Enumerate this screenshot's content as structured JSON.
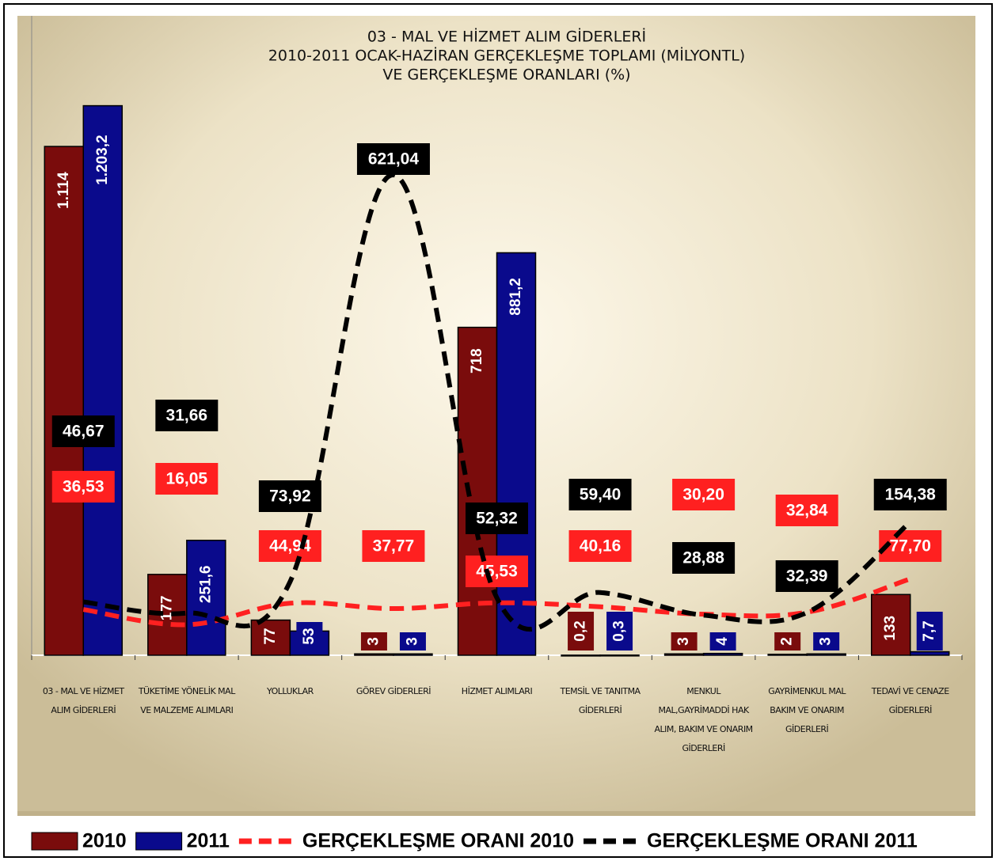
{
  "chart_data": {
    "type": "bar",
    "title": [
      "03 - MAL VE HİZMET ALIM GİDERLERİ",
      "2010-2011 OCAK-HAZİRAN GERÇEKLEŞME TOPLAMI (MİLYONTL)",
      "VE GERÇEKLEŞME ORANLARI (%)"
    ],
    "categories": [
      "03 - MAL VE HİZMET ALIM GİDERLERİ",
      "TÜKETİME YÖNELİK MAL VE MALZEME ALIMLARI",
      "YOLLUKLAR",
      "GÖREV GİDERLERİ",
      "HİZMET ALIMLARI",
      "TEMSİL VE TANITMA GİDERLERİ",
      "MENKUL MAL,GAYRİMADDİ HAK ALIM, BAKIM VE ONARIM GİDERLERİ",
      "GAYRİMENKUL MAL BAKIM VE ONARIM GİDERLERİ",
      "TEDAVİ VE CENAZE GİDERLERİ"
    ],
    "ylim": [
      0,
      1400
    ],
    "y2lim": [
      -25,
      835
    ],
    "legend": "bottom",
    "series": [
      {
        "name": "2010",
        "type": "bar",
        "color": "#7a0c0c",
        "values": [
          1114,
          177,
          77,
          3,
          718,
          0.2,
          3,
          2,
          133
        ],
        "value_labels": [
          "1.114",
          "177",
          "77",
          "3",
          "718",
          "0,2",
          "3",
          "2",
          "133"
        ]
      },
      {
        "name": "2011",
        "type": "bar",
        "color": "#0a0a8c",
        "values": [
          1203.2,
          251.6,
          53,
          3,
          881.2,
          0.3,
          4,
          3,
          7.7
        ],
        "value_labels": [
          "1.203,2",
          "251,6",
          "53",
          "3",
          "881,2",
          "0,3",
          "4",
          "3",
          "7,7"
        ]
      },
      {
        "name": "GERÇEKLEŞME ORANI 2010",
        "type": "line",
        "axis": "y2",
        "color": "#ff2020",
        "values": [
          36.53,
          16.05,
          44.94,
          37.77,
          45.53,
          40.16,
          30.2,
          32.84,
          77.7
        ],
        "value_labels": [
          "36,53",
          "16,05",
          "44,94",
          "37,77",
          "45,53",
          "40,16",
          "30,20",
          "32,84",
          "77,70"
        ]
      },
      {
        "name": "GERÇEKLEŞME ORANI 2011",
        "type": "line",
        "axis": "y2",
        "color": "#000000",
        "values": [
          46.67,
          31.66,
          73.92,
          621.04,
          52.32,
          59.4,
          28.88,
          32.39,
          154.38
        ],
        "value_labels": [
          "46,67",
          "31,66",
          "73,92",
          "621,04",
          "52,32",
          "59,40",
          "28,88",
          "32,39",
          "154,38"
        ]
      }
    ]
  }
}
